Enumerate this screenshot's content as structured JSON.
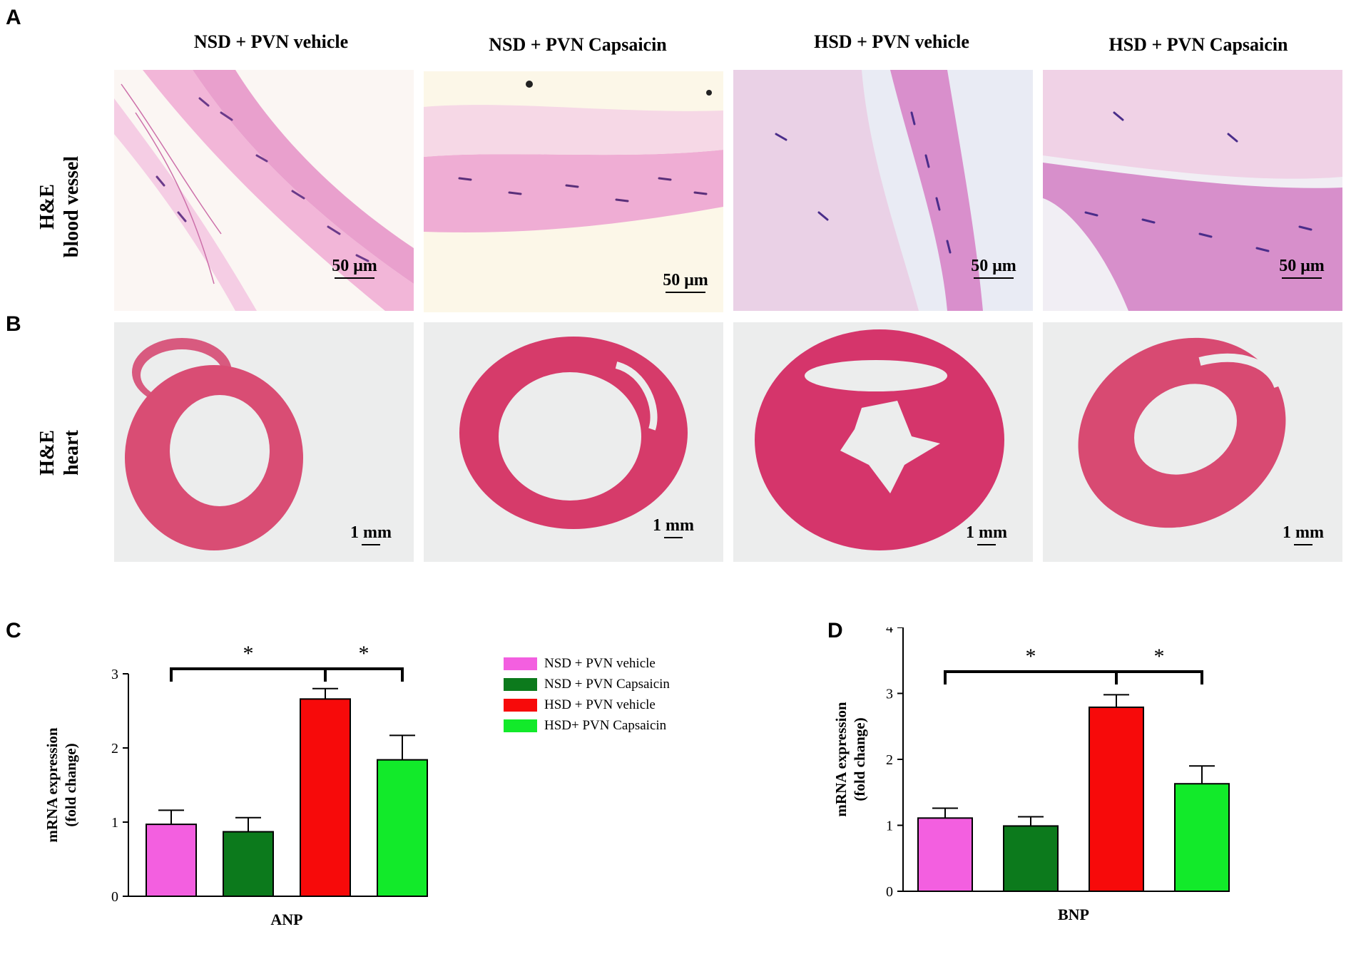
{
  "figure": {
    "panel_labels": {
      "a": "A",
      "b": "B",
      "c": "C",
      "d": "D"
    },
    "columns": [
      "NSD + PVN vehicle",
      "NSD + PVN Capsaicin",
      "HSD + PVN vehicle",
      "HSD +  PVN Capsaicin"
    ],
    "row_labels": {
      "vessel": [
        "H&E",
        "blood vessel"
      ],
      "heart": [
        "H&E",
        "heart"
      ]
    },
    "scale_bars": {
      "vessel": "50 μm",
      "heart": "1 mm"
    },
    "colors": {
      "nsd_vehicle": "#f35fe0",
      "nsd_capsaicin": "#0c7a1c",
      "hsd_vehicle": "#f70a0a",
      "hsd_capsaicin": "#12ea2a"
    }
  },
  "legend": [
    {
      "label": "NSD + PVN vehicle",
      "color": "#f35fe0"
    },
    {
      "label": "NSD + PVN Capsaicin",
      "color": "#0c7a1c"
    },
    {
      "label": "HSD + PVN vehicle",
      "color": "#f70a0a"
    },
    {
      "label": "HSD+ PVN Capsaicin",
      "color": "#12ea2a"
    }
  ],
  "chart_data": [
    {
      "panel": "C",
      "type": "bar",
      "categories": [
        "NSD + PVN vehicle",
        "NSD + PVN Capsaicin",
        "HSD + PVN vehicle",
        "HSD+ PVN Capsaicin"
      ],
      "values": [
        0.97,
        0.87,
        2.66,
        1.84
      ],
      "errors": [
        0.19,
        0.19,
        0.14,
        0.33
      ],
      "colors": [
        "#f35fe0",
        "#0c7a1c",
        "#f70a0a",
        "#12ea2a"
      ],
      "xlabel": "ANP",
      "ylabel": [
        "mRNA expression",
        "(fold change)"
      ],
      "ylim": [
        0,
        3
      ],
      "yticks": [
        0,
        1,
        2,
        3
      ],
      "significance": [
        {
          "from": 0,
          "to": 2,
          "label": "*"
        },
        {
          "from": 2,
          "to": 3,
          "label": "*"
        }
      ]
    },
    {
      "panel": "D",
      "type": "bar",
      "categories": [
        "NSD + PVN vehicle",
        "NSD + PVN Capsaicin",
        "HSD + PVN vehicle",
        "HSD+ PVN Capsaicin"
      ],
      "values": [
        1.11,
        0.99,
        2.79,
        1.63
      ],
      "errors": [
        0.15,
        0.14,
        0.19,
        0.27
      ],
      "colors": [
        "#f35fe0",
        "#0c7a1c",
        "#f70a0a",
        "#12ea2a"
      ],
      "xlabel": "BNP",
      "ylabel": [
        "mRNA expression",
        "(fold change)"
      ],
      "ylim": [
        0,
        4
      ],
      "yticks": [
        0,
        1,
        2,
        3,
        4
      ],
      "significance": [
        {
          "from": 0,
          "to": 2,
          "label": "*"
        },
        {
          "from": 2,
          "to": 3,
          "label": "*"
        }
      ]
    }
  ]
}
